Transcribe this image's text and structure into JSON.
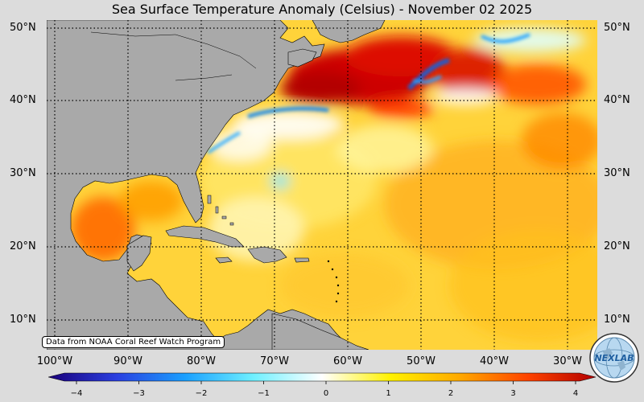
{
  "title": "Sea Surface Temperature Anomaly (Celsius) - November 02 2025",
  "lat_labels": [
    "50°N",
    "40°N",
    "30°N",
    "20°N",
    "10°N"
  ],
  "lon_labels": [
    "100°W",
    "90°W",
    "80°W",
    "70°W",
    "60°W",
    "50°W",
    "40°W",
    "30°W"
  ],
  "credit": "Data from NOAA Coral Reef Watch Program",
  "colorbar": {
    "ticks": [
      "−4",
      "−3",
      "−2",
      "−1",
      "0",
      "1",
      "2",
      "3",
      "4"
    ],
    "min": -4,
    "max": 4,
    "stops": [
      "#1a007a",
      "#2a3fe0",
      "#1aa0ff",
      "#6ff0ff",
      "#ffffff",
      "#fff200",
      "#ffaa00",
      "#ff4400",
      "#b30000"
    ]
  },
  "colors": {
    "land": "#a9a9a9",
    "warm": "#ffd23a",
    "hot": "#cc0000",
    "cold": "#1f7fd8",
    "background": "#dcdcdc"
  },
  "logo_text": "NEXLAB",
  "icons": {
    "logo": "nexlab-globe-logo"
  }
}
